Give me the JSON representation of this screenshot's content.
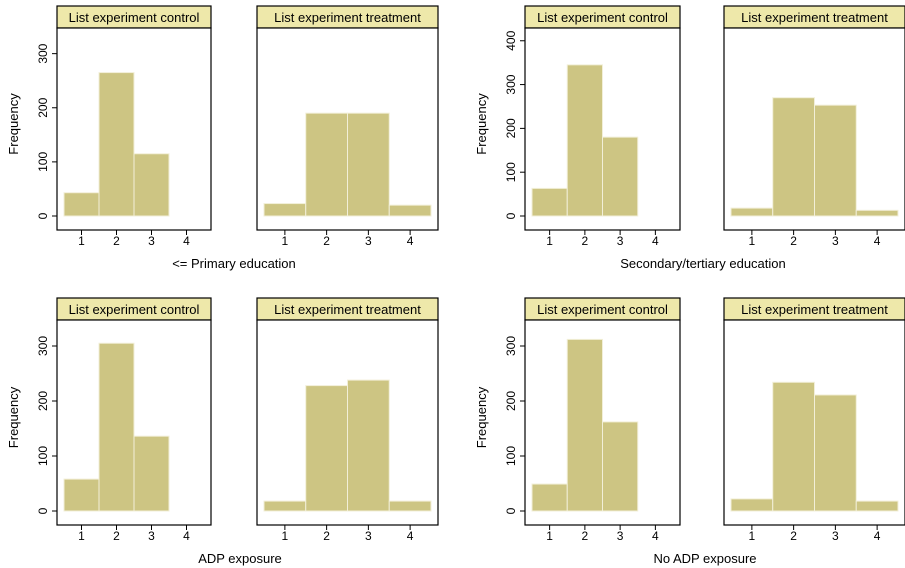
{
  "chart_data": [
    {
      "type": "bar",
      "xlabel": "<= Primary education",
      "ylabel": "Frequency",
      "ylim": [
        0,
        340
      ],
      "yticks": [
        0,
        100,
        200,
        300
      ],
      "xticks": [
        1,
        2,
        3,
        4
      ],
      "panels": [
        {
          "label": "List experiment control",
          "x": [
            1,
            2,
            3,
            4
          ],
          "values": [
            43,
            265,
            115,
            0
          ]
        },
        {
          "label": "List experiment treatment",
          "x": [
            1,
            2,
            3,
            4
          ],
          "values": [
            23,
            190,
            190,
            20
          ]
        }
      ]
    },
    {
      "type": "bar",
      "xlabel": "Secondary/tertiary education",
      "ylabel": "Frequency",
      "ylim": [
        0,
        420
      ],
      "yticks": [
        0,
        100,
        200,
        300,
        400
      ],
      "xticks": [
        1,
        2,
        3,
        4
      ],
      "panels": [
        {
          "label": "List experiment control",
          "x": [
            1,
            2,
            3,
            4
          ],
          "values": [
            63,
            345,
            180,
            0
          ]
        },
        {
          "label": "List experiment treatment",
          "x": [
            1,
            2,
            3,
            4
          ],
          "values": [
            18,
            270,
            253,
            13
          ]
        }
      ]
    },
    {
      "type": "bar",
      "xlabel": "ADP exposure",
      "ylabel": "Frequency",
      "ylim": [
        0,
        340
      ],
      "yticks": [
        0,
        100,
        200,
        300
      ],
      "xticks": [
        1,
        2,
        3,
        4
      ],
      "panels": [
        {
          "label": "List experiment control",
          "x": [
            1,
            2,
            3,
            4
          ],
          "values": [
            58,
            305,
            136,
            0
          ]
        },
        {
          "label": "List experiment treatment",
          "x": [
            1,
            2,
            3,
            4
          ],
          "values": [
            18,
            228,
            238,
            18
          ]
        }
      ]
    },
    {
      "type": "bar",
      "xlabel": "No ADP exposure",
      "ylabel": "Frequency",
      "ylim": [
        0,
        340
      ],
      "yticks": [
        0,
        100,
        200,
        300
      ],
      "xticks": [
        1,
        2,
        3,
        4
      ],
      "panels": [
        {
          "label": "List experiment control",
          "x": [
            1,
            2,
            3,
            4
          ],
          "values": [
            49,
            312,
            162,
            0
          ]
        },
        {
          "label": "List experiment treatment",
          "x": [
            1,
            2,
            3,
            4
          ],
          "values": [
            22,
            234,
            211,
            18
          ]
        }
      ]
    }
  ]
}
